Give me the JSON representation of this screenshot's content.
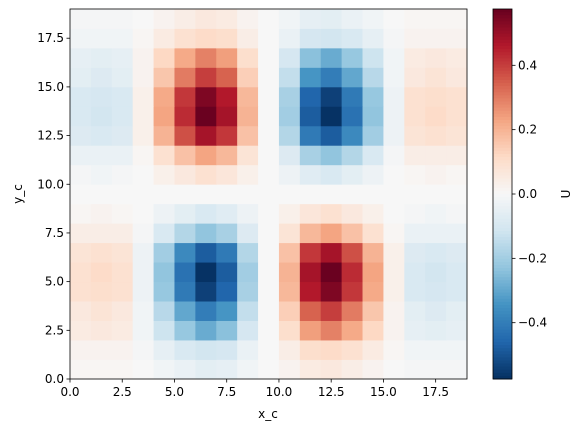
{
  "chart_data": {
    "type": "heatmap",
    "x_label": "x_c",
    "y_label": "y_c",
    "colorbar_label": "U",
    "colormap": "RdBu_r",
    "xlim": [
      0,
      19
    ],
    "ylim": [
      0,
      19
    ],
    "clim": [
      -0.575,
      0.575
    ],
    "xticks": [
      {
        "value": 0,
        "label": "0.0"
      },
      2.5,
      {
        "value": 5,
        "label": "5.0"
      },
      7.5,
      {
        "value": 10,
        "label": "10.0"
      },
      12.5,
      {
        "value": 15,
        "label": "15.0"
      },
      17.5
    ],
    "yticks": [
      {
        "value": 0,
        "label": "0.0"
      },
      2.5,
      {
        "value": 5,
        "label": "5.0"
      },
      7.5,
      {
        "value": 10,
        "label": "10.0"
      },
      12.5,
      {
        "value": 15,
        "label": "15.0"
      },
      17.5
    ],
    "cticks": [
      {
        "value": -0.4,
        "label": "−0.4"
      },
      {
        "value": -0.2,
        "label": "−0.2"
      },
      {
        "value": 0,
        "label": "0.0"
      },
      0.2,
      0.4
    ],
    "z": [
      [
        0.01,
        0.01,
        0.01,
        0,
        -0.02,
        -0.04,
        -0.06,
        -0.05,
        -0.02,
        0,
        0.02,
        0.05,
        0.06,
        0.04,
        0.02,
        0,
        -0.01,
        -0.01,
        -0.01
      ],
      [
        0.02,
        0.02,
        0.02,
        -0.01,
        -0.05,
        -0.09,
        -0.11,
        -0.1,
        -0.04,
        0,
        0.04,
        0.1,
        0.11,
        0.09,
        0.05,
        0.01,
        -0.02,
        -0.02,
        -0.02
      ],
      [
        0.05,
        0.06,
        0.05,
        -0.02,
        -0.12,
        -0.22,
        -0.29,
        -0.24,
        -0.1,
        0,
        0.1,
        0.24,
        0.29,
        0.22,
        0.12,
        0.02,
        -0.05,
        -0.06,
        -0.05
      ],
      [
        0.06,
        0.08,
        0.06,
        -0.02,
        -0.16,
        -0.3,
        -0.4,
        -0.34,
        -0.14,
        0,
        0.14,
        0.34,
        0.4,
        0.3,
        0.16,
        0.02,
        -0.06,
        -0.08,
        -0.06
      ],
      [
        0.09,
        0.1,
        0.09,
        -0.03,
        -0.22,
        -0.41,
        -0.54,
        -0.46,
        -0.19,
        0,
        0.19,
        0.46,
        0.54,
        0.41,
        0.22,
        0.03,
        -0.09,
        -0.1,
        -0.09
      ],
      [
        0.09,
        0.11,
        0.09,
        -0.03,
        -0.23,
        -0.43,
        -0.57,
        -0.48,
        -0.2,
        0,
        0.2,
        0.48,
        0.57,
        0.43,
        0.23,
        0.03,
        -0.09,
        -0.11,
        -0.09
      ],
      [
        0.08,
        0.09,
        0.08,
        -0.03,
        -0.2,
        -0.37,
        -0.48,
        -0.41,
        -0.17,
        0,
        0.17,
        0.41,
        0.48,
        0.37,
        0.2,
        0.03,
        -0.08,
        -0.09,
        -0.08
      ],
      [
        0.04,
        0.04,
        0.04,
        -0.01,
        -0.09,
        -0.17,
        -0.23,
        -0.19,
        -0.08,
        0,
        0.08,
        0.19,
        0.23,
        0.17,
        0.09,
        0.01,
        -0.04,
        -0.04,
        -0.04
      ],
      [
        0.01,
        0.02,
        0.01,
        0,
        -0.03,
        -0.06,
        -0.09,
        -0.07,
        -0.03,
        0,
        0.03,
        0.07,
        0.09,
        0.06,
        0.03,
        0,
        -0.01,
        -0.02,
        -0.01
      ],
      [
        0,
        0,
        0,
        0,
        0,
        0,
        0,
        0,
        0,
        0,
        0,
        0,
        0,
        0,
        0,
        0,
        0,
        0,
        0
      ],
      [
        -0.01,
        -0.02,
        -0.01,
        0,
        0.03,
        0.06,
        0.09,
        0.07,
        0.03,
        0,
        -0.03,
        -0.07,
        -0.09,
        -0.06,
        -0.03,
        0,
        0.01,
        0.02,
        0.01
      ],
      [
        -0.04,
        -0.04,
        -0.04,
        0.01,
        0.09,
        0.17,
        0.23,
        0.19,
        0.08,
        0,
        -0.08,
        -0.19,
        -0.23,
        -0.17,
        -0.09,
        -0.01,
        0.04,
        0.04,
        0.04
      ],
      [
        -0.08,
        -0.09,
        -0.08,
        0.03,
        0.2,
        0.37,
        0.48,
        0.41,
        0.17,
        0,
        -0.17,
        -0.41,
        -0.48,
        -0.37,
        -0.2,
        -0.03,
        0.08,
        0.09,
        0.08
      ],
      [
        -0.09,
        -0.11,
        -0.09,
        0.03,
        0.23,
        0.43,
        0.57,
        0.48,
        0.2,
        0,
        -0.2,
        -0.48,
        -0.57,
        -0.43,
        -0.23,
        -0.03,
        0.09,
        0.11,
        0.09
      ],
      [
        -0.09,
        -0.1,
        -0.09,
        0.03,
        0.22,
        0.41,
        0.54,
        0.46,
        0.19,
        0,
        -0.19,
        -0.46,
        -0.54,
        -0.41,
        -0.22,
        -0.03,
        0.09,
        0.1,
        0.09
      ],
      [
        -0.06,
        -0.08,
        -0.06,
        0.02,
        0.16,
        0.3,
        0.4,
        0.34,
        0.14,
        0,
        -0.14,
        -0.34,
        -0.4,
        -0.3,
        -0.16,
        -0.02,
        0.06,
        0.08,
        0.06
      ],
      [
        -0.05,
        -0.06,
        -0.05,
        0.02,
        0.12,
        0.22,
        0.29,
        0.24,
        0.1,
        0,
        -0.1,
        -0.24,
        -0.29,
        -0.22,
        -0.12,
        -0.02,
        0.05,
        0.06,
        0.05
      ],
      [
        -0.02,
        -0.02,
        -0.02,
        0.01,
        0.05,
        0.09,
        0.11,
        0.1,
        0.04,
        0,
        -0.04,
        -0.1,
        -0.11,
        -0.09,
        -0.05,
        -0.01,
        0.02,
        0.02,
        0.02
      ],
      [
        -0.01,
        -0.01,
        -0.01,
        0,
        0.02,
        0.04,
        0.06,
        0.05,
        0.02,
        0,
        -0.02,
        -0.05,
        -0.06,
        -0.04,
        -0.02,
        0,
        0.01,
        0.01,
        0.01
      ]
    ]
  }
}
